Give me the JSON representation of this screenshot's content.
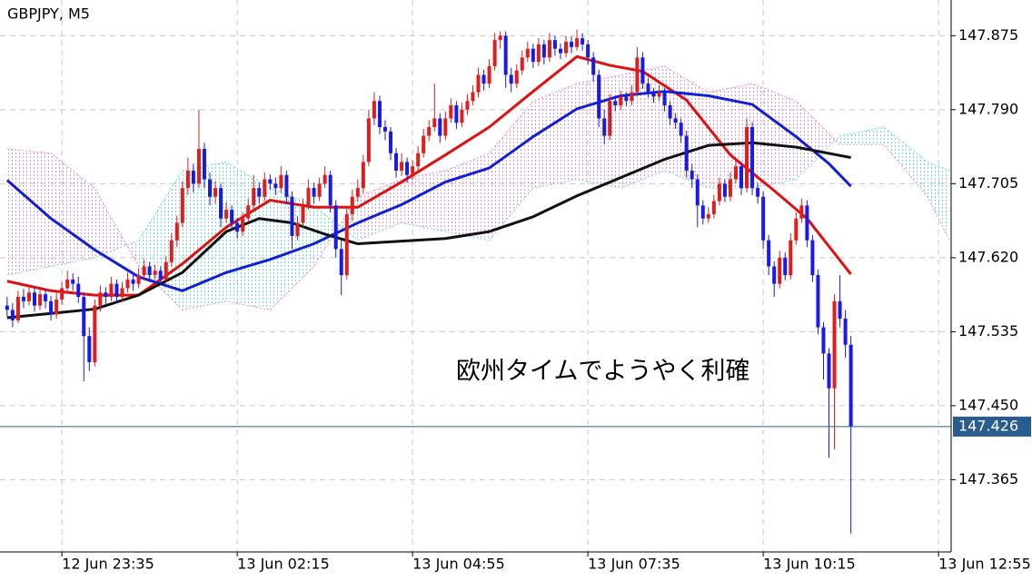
{
  "chart_data": {
    "type": "candlestick",
    "title": "GBPJPY, M5",
    "annotation": "欧州タイムでようやく利確",
    "up_color": "#dc1e1e",
    "down_color": "#1a1ae6",
    "ylim": [
      147.282,
      147.916
    ],
    "yticks": [
      147.365,
      {
        "value": 147.45,
        "label": "147.450"
      },
      147.535,
      {
        "value": 147.62,
        "label": "147.620"
      },
      147.705,
      {
        "value": 147.79,
        "label": "147.790"
      },
      147.875
    ],
    "xlim": [
      -1.3,
      172.3
    ],
    "xticks": [
      {
        "value": 10,
        "label": "12 Jun 23:35"
      },
      {
        "value": 42,
        "label": "13 Jun 02:15"
      },
      {
        "value": 74,
        "label": "13 Jun 04:55"
      },
      {
        "value": 106,
        "label": "13 Jun 07:35"
      },
      {
        "value": 138,
        "label": "13 Jun 10:15"
      },
      {
        "value": 170,
        "label": "13 Jun 12:55"
      }
    ],
    "grid": true,
    "last_price": 147.426,
    "last_price_color": "#2a5d8f",
    "ohlc": [
      [
        147.565,
        147.575,
        147.552,
        147.56
      ],
      [
        147.56,
        147.568,
        147.54,
        147.548
      ],
      [
        147.548,
        147.582,
        147.545,
        147.575
      ],
      [
        147.575,
        147.584,
        147.562,
        147.57
      ],
      [
        147.57,
        147.588,
        147.565,
        147.58
      ],
      [
        147.58,
        147.586,
        147.558,
        147.565
      ],
      [
        147.565,
        147.585,
        147.56,
        147.578
      ],
      [
        147.578,
        147.584,
        147.562,
        147.57
      ],
      [
        147.57,
        147.576,
        147.548,
        147.555
      ],
      [
        147.555,
        147.58,
        147.55,
        147.572
      ],
      [
        147.572,
        147.592,
        147.566,
        147.585
      ],
      [
        147.585,
        147.605,
        147.58,
        147.595
      ],
      [
        147.595,
        147.602,
        147.582,
        147.59
      ],
      [
        147.59,
        147.598,
        147.568,
        147.575
      ],
      [
        147.575,
        147.58,
        147.478,
        147.53
      ],
      [
        147.53,
        147.54,
        147.49,
        147.5
      ],
      [
        147.5,
        147.572,
        147.495,
        147.565
      ],
      [
        147.565,
        147.588,
        147.558,
        147.58
      ],
      [
        147.58,
        147.586,
        147.566,
        147.575
      ],
      [
        147.575,
        147.598,
        147.57,
        147.59
      ],
      [
        147.59,
        147.595,
        147.568,
        147.575
      ],
      [
        147.575,
        147.592,
        147.57,
        147.585
      ],
      [
        147.585,
        147.603,
        147.58,
        147.595
      ],
      [
        147.595,
        147.6,
        147.582,
        147.59
      ],
      [
        147.59,
        147.608,
        147.585,
        147.6
      ],
      [
        147.6,
        147.618,
        147.594,
        147.61
      ],
      [
        147.61,
        147.615,
        147.592,
        147.6
      ],
      [
        147.6,
        147.612,
        147.595,
        147.605
      ],
      [
        147.605,
        147.61,
        147.588,
        147.595
      ],
      [
        147.595,
        147.622,
        147.59,
        147.615
      ],
      [
        147.615,
        147.648,
        147.61,
        147.64
      ],
      [
        147.64,
        147.668,
        147.632,
        147.66
      ],
      [
        147.66,
        147.708,
        147.655,
        147.7
      ],
      [
        147.7,
        147.735,
        147.692,
        147.72
      ],
      [
        147.72,
        147.728,
        147.695,
        147.705
      ],
      [
        147.705,
        147.79,
        147.7,
        147.745
      ],
      [
        147.745,
        147.752,
        147.7,
        147.71
      ],
      [
        147.71,
        147.718,
        147.68,
        147.69
      ],
      [
        147.69,
        147.708,
        147.682,
        147.7
      ],
      [
        147.7,
        147.705,
        147.655,
        147.665
      ],
      [
        147.665,
        147.684,
        147.66,
        147.675
      ],
      [
        147.675,
        147.68,
        147.652,
        147.66
      ],
      [
        147.66,
        147.666,
        147.642,
        147.65
      ],
      [
        147.65,
        147.672,
        147.645,
        147.665
      ],
      [
        147.665,
        147.688,
        147.66,
        147.68
      ],
      [
        147.68,
        147.715,
        147.675,
        147.7
      ],
      [
        147.7,
        147.706,
        147.682,
        147.69
      ],
      [
        147.69,
        147.718,
        147.685,
        147.71
      ],
      [
        147.71,
        147.716,
        147.698,
        147.705
      ],
      [
        147.705,
        147.712,
        147.692,
        147.7
      ],
      [
        147.7,
        147.725,
        147.695,
        147.715
      ],
      [
        147.715,
        147.72,
        147.682,
        147.69
      ],
      [
        147.69,
        147.696,
        147.63,
        147.645
      ],
      [
        147.645,
        147.668,
        147.64,
        147.66
      ],
      [
        147.66,
        147.688,
        147.655,
        147.68
      ],
      [
        147.68,
        147.71,
        147.675,
        147.7
      ],
      [
        147.7,
        147.706,
        147.682,
        147.69
      ],
      [
        147.69,
        147.712,
        147.685,
        147.705
      ],
      [
        147.705,
        147.725,
        147.7,
        147.715
      ],
      [
        147.715,
        147.72,
        147.672,
        147.68
      ],
      [
        147.68,
        147.686,
        147.62,
        147.63
      ],
      [
        147.63,
        147.64,
        147.577,
        147.6
      ],
      [
        147.6,
        147.678,
        147.595,
        147.67
      ],
      [
        147.67,
        147.698,
        147.662,
        147.69
      ],
      [
        147.69,
        147.71,
        147.684,
        147.7
      ],
      [
        147.7,
        147.738,
        147.694,
        147.73
      ],
      [
        147.73,
        147.79,
        147.725,
        147.78
      ],
      [
        147.78,
        147.81,
        147.772,
        147.8
      ],
      [
        147.8,
        147.806,
        147.762,
        147.77
      ],
      [
        147.77,
        147.778,
        147.755,
        147.765
      ],
      [
        147.765,
        147.77,
        147.732,
        147.74
      ],
      [
        147.74,
        147.746,
        147.712,
        147.72
      ],
      [
        147.72,
        147.74,
        147.714,
        147.73
      ],
      [
        147.73,
        147.735,
        147.706,
        147.715
      ],
      [
        147.715,
        147.732,
        147.71,
        147.725
      ],
      [
        147.725,
        147.748,
        147.72,
        147.74
      ],
      [
        147.74,
        147.768,
        147.735,
        147.76
      ],
      [
        147.76,
        147.778,
        147.754,
        147.77
      ],
      [
        147.77,
        147.82,
        147.765,
        147.78
      ],
      [
        147.78,
        147.786,
        147.752,
        147.76
      ],
      [
        147.76,
        147.788,
        147.755,
        147.78
      ],
      [
        147.78,
        147.803,
        147.775,
        147.795
      ],
      [
        147.795,
        147.8,
        147.768,
        147.775
      ],
      [
        147.775,
        147.798,
        147.77,
        147.79
      ],
      [
        147.79,
        147.808,
        147.784,
        147.8
      ],
      [
        147.8,
        147.818,
        147.795,
        147.81
      ],
      [
        147.81,
        147.838,
        147.804,
        147.83
      ],
      [
        147.83,
        147.836,
        147.812,
        147.82
      ],
      [
        147.82,
        147.848,
        147.815,
        147.84
      ],
      [
        147.84,
        147.878,
        147.835,
        147.87
      ],
      [
        147.87,
        147.88,
        147.86,
        147.875
      ],
      [
        147.875,
        147.88,
        147.815,
        147.83
      ],
      [
        147.83,
        147.838,
        147.81,
        147.82
      ],
      [
        147.82,
        147.842,
        147.815,
        147.835
      ],
      [
        147.835,
        147.858,
        147.83,
        147.85
      ],
      [
        147.85,
        147.868,
        147.845,
        147.86
      ],
      [
        147.86,
        147.866,
        147.838,
        147.845
      ],
      [
        147.845,
        147.872,
        147.84,
        147.865
      ],
      [
        147.865,
        147.87,
        147.842,
        147.85
      ],
      [
        147.85,
        147.878,
        147.845,
        147.87
      ],
      [
        147.87,
        147.875,
        147.852,
        147.86
      ],
      [
        147.86,
        147.866,
        147.848,
        147.855
      ],
      [
        147.855,
        147.875,
        147.85,
        147.868
      ],
      [
        147.868,
        147.874,
        147.855,
        147.862
      ],
      [
        147.862,
        147.882,
        147.858,
        147.872
      ],
      [
        147.872,
        147.878,
        147.858,
        147.865
      ],
      [
        147.865,
        147.87,
        147.842,
        147.85
      ],
      [
        147.85,
        147.856,
        147.822,
        147.83
      ],
      [
        147.83,
        147.836,
        147.77,
        147.78
      ],
      [
        147.78,
        147.79,
        147.75,
        147.76
      ],
      [
        147.76,
        147.808,
        147.755,
        147.8
      ],
      [
        147.8,
        147.806,
        147.788,
        147.795
      ],
      [
        147.795,
        147.812,
        147.79,
        147.805
      ],
      [
        147.805,
        147.81,
        147.794,
        147.8
      ],
      [
        147.8,
        147.818,
        147.795,
        147.81
      ],
      [
        147.81,
        147.862,
        147.805,
        147.85
      ],
      [
        147.85,
        147.856,
        147.814,
        147.82
      ],
      [
        147.82,
        147.826,
        147.804,
        147.81
      ],
      [
        147.81,
        147.815,
        147.798,
        147.805
      ],
      [
        147.805,
        147.818,
        147.8,
        147.81
      ],
      [
        147.81,
        147.815,
        147.788,
        147.795
      ],
      [
        147.795,
        147.8,
        147.772,
        147.78
      ],
      [
        147.78,
        147.786,
        147.768,
        147.775
      ],
      [
        147.775,
        147.78,
        147.752,
        147.76
      ],
      [
        147.76,
        147.766,
        147.712,
        147.72
      ],
      [
        147.72,
        147.728,
        147.7,
        147.71
      ],
      [
        147.71,
        147.716,
        147.655,
        147.68
      ],
      [
        147.68,
        147.686,
        147.658,
        147.665
      ],
      [
        147.665,
        147.678,
        147.66,
        147.67
      ],
      [
        147.67,
        147.692,
        147.665,
        147.685
      ],
      [
        147.685,
        147.712,
        147.68,
        147.705
      ],
      [
        147.705,
        147.71,
        147.684,
        147.69
      ],
      [
        147.69,
        147.718,
        147.685,
        147.71
      ],
      [
        147.71,
        147.732,
        147.705,
        147.725
      ],
      [
        147.725,
        147.73,
        147.692,
        147.7
      ],
      [
        147.7,
        147.78,
        147.695,
        147.77
      ],
      [
        147.77,
        147.776,
        147.692,
        147.7
      ],
      [
        147.7,
        147.706,
        147.682,
        147.69
      ],
      [
        147.69,
        147.696,
        147.63,
        147.64
      ],
      [
        147.64,
        147.646,
        147.6,
        147.61
      ],
      [
        147.61,
        147.616,
        147.575,
        147.59
      ],
      [
        147.59,
        147.628,
        147.585,
        147.62
      ],
      [
        147.62,
        147.626,
        147.594,
        147.6
      ],
      [
        147.6,
        147.648,
        147.595,
        147.64
      ],
      [
        147.64,
        147.672,
        147.635,
        147.665
      ],
      [
        147.665,
        147.688,
        147.66,
        147.68
      ],
      [
        147.68,
        147.686,
        147.632,
        147.64
      ],
      [
        147.64,
        147.646,
        147.592,
        147.6
      ],
      [
        147.6,
        147.606,
        147.532,
        147.54
      ],
      [
        147.54,
        147.546,
        147.48,
        147.51
      ],
      [
        147.51,
        147.516,
        147.39,
        147.47
      ],
      [
        147.47,
        147.578,
        147.4,
        147.57
      ],
      [
        147.57,
        147.6,
        147.54,
        147.55
      ],
      [
        147.55,
        147.56,
        147.505,
        147.52
      ],
      [
        147.52,
        147.53,
        147.303,
        147.426
      ]
    ],
    "indicators": [
      {
        "color": "#e01010",
        "x": [
          0,
          8,
          16,
          24,
          32,
          40,
          48,
          56,
          64,
          72,
          80,
          88,
          96,
          104,
          110,
          116,
          124,
          132,
          140,
          146,
          154
        ],
        "values": [
          147.593,
          147.582,
          147.577,
          147.577,
          147.613,
          147.655,
          147.686,
          147.678,
          147.678,
          147.707,
          147.738,
          147.77,
          147.811,
          147.851,
          147.841,
          147.834,
          147.801,
          147.738,
          147.697,
          147.665,
          147.601
        ]
      },
      {
        "color": "#1020d8",
        "x": [
          0,
          8,
          16,
          24,
          32,
          40,
          48,
          56,
          64,
          72,
          80,
          88,
          96,
          104,
          112,
          120,
          128,
          136,
          144,
          150,
          154
        ],
        "values": [
          147.709,
          147.665,
          147.629,
          147.598,
          147.582,
          147.603,
          147.618,
          147.636,
          147.66,
          147.681,
          147.707,
          147.723,
          147.759,
          147.791,
          147.806,
          147.811,
          147.806,
          147.796,
          147.759,
          147.728,
          147.702
        ]
      },
      {
        "color": "#111111",
        "x": [
          0,
          8,
          16,
          24,
          32,
          40,
          46,
          52,
          58,
          64,
          72,
          80,
          88,
          96,
          104,
          112,
          120,
          128,
          136,
          144,
          154
        ],
        "values": [
          147.551,
          147.556,
          147.561,
          147.577,
          147.603,
          147.65,
          147.665,
          147.66,
          147.647,
          147.636,
          147.639,
          147.642,
          147.65,
          147.667,
          147.691,
          147.712,
          147.733,
          147.749,
          147.752,
          147.747,
          147.735
        ]
      }
    ],
    "cloud": {
      "up_color": "#f08ccf",
      "down_color": "#6fd8e0",
      "x": [
        0,
        8,
        16,
        24,
        32,
        40,
        48,
        56,
        64,
        72,
        80,
        88,
        96,
        104,
        112,
        120,
        128,
        136,
        144,
        152,
        160,
        168,
        172
      ],
      "span_a": [
        147.745,
        147.74,
        147.7,
        147.61,
        147.56,
        147.57,
        147.56,
        147.61,
        147.69,
        147.71,
        147.72,
        147.74,
        147.8,
        147.82,
        147.83,
        147.84,
        147.81,
        147.82,
        147.8,
        147.75,
        147.75,
        147.69,
        147.64
      ],
      "span_b": [
        147.6,
        147.61,
        147.62,
        147.64,
        147.72,
        147.73,
        147.7,
        147.68,
        147.64,
        147.66,
        147.65,
        147.64,
        147.7,
        147.71,
        147.7,
        147.72,
        147.7,
        147.7,
        147.71,
        147.76,
        147.77,
        147.73,
        147.72
      ]
    }
  }
}
